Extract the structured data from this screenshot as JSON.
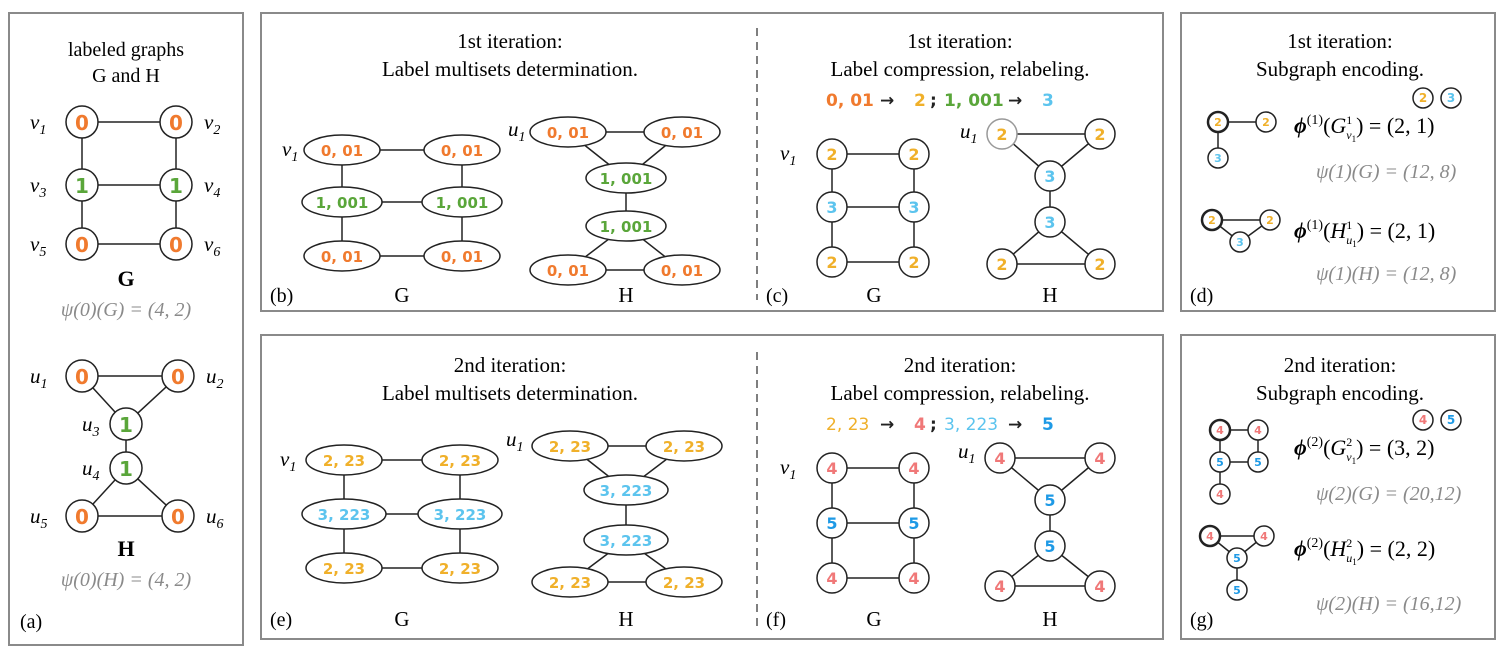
{
  "colors": {
    "orange": "#f07a2e",
    "green": "#5aa63a",
    "yellow": "#f0b02a",
    "cyan": "#5cc4ee",
    "pink": "#f07878",
    "blue": "#1e9ae6",
    "gray": "#8a8a8a",
    "frame": "#8a8a8a"
  },
  "panel_a": {
    "title_line1": "labeled graphs",
    "title_line2": "G and H",
    "G_label": "G",
    "H_label": "H",
    "psi_G": "ψ(0)(G) = (4, 2)",
    "psi_H": "ψ(0)(H) = (4, 2)",
    "tag": "(a)",
    "G_nodes": [
      {
        "name": "v1",
        "label": "0"
      },
      {
        "name": "v2",
        "label": "0"
      },
      {
        "name": "v3",
        "label": "1"
      },
      {
        "name": "v4",
        "label": "1"
      },
      {
        "name": "v5",
        "label": "0"
      },
      {
        "name": "v6",
        "label": "0"
      }
    ],
    "H_nodes": [
      {
        "name": "u1",
        "label": "0"
      },
      {
        "name": "u2",
        "label": "0"
      },
      {
        "name": "u3",
        "label": "1"
      },
      {
        "name": "u4",
        "label": "1"
      },
      {
        "name": "u5",
        "label": "0"
      },
      {
        "name": "u6",
        "label": "0"
      }
    ]
  },
  "panel_b": {
    "title_line1": "1st iteration:",
    "title_line2": "Label multisets determination.",
    "G_nodes": [
      "0, 01",
      "0, 01",
      "1, 001",
      "1, 001",
      "0, 01",
      "0, 01"
    ],
    "H_nodes": [
      "0, 01",
      "0, 01",
      "1, 001",
      "1, 001",
      "0, 01",
      "0, 01"
    ],
    "G_caption": "G",
    "H_caption": "H",
    "tag": "(b)",
    "G_anchor": "v1",
    "H_anchor": "u1"
  },
  "panel_c": {
    "title_line1": "1st iteration:",
    "title_line2": "Label compression, relabeling.",
    "rule1_from": "0, 01",
    "rule1_to": "2",
    "rule2_from": "1, 001",
    "rule2_to": "3",
    "arrow": "→",
    "separator": ";",
    "G_nodes": [
      "2",
      "2",
      "3",
      "3",
      "2",
      "2"
    ],
    "H_nodes": [
      "2",
      "2",
      "3",
      "3",
      "2",
      "2"
    ],
    "G_caption": "G",
    "H_caption": "H",
    "tag": "(c)",
    "G_anchor": "v1",
    "H_anchor": "u1"
  },
  "panel_d": {
    "title_line1": "1st iteration:",
    "title_line2": "Subgraph encoding.",
    "legend": [
      "2",
      "3"
    ],
    "phi_G": "ϕ(1)(G1v1) = (2,  1)",
    "psi_G": "ψ(1)(G) = (12, 8)",
    "phi_H": "ϕ(1)(H1u1) = (2,  1)",
    "psi_H": "ψ(1)(H) = (12, 8)",
    "tag": "(d)"
  },
  "panel_e": {
    "title_line1": "2nd iteration:",
    "title_line2": "Label multisets determination.",
    "G_nodes": [
      "2, 23",
      "2, 23",
      "3, 223",
      "3, 223",
      "2, 23",
      "2, 23"
    ],
    "H_nodes": [
      "2, 23",
      "2, 23",
      "3, 223",
      "3, 223",
      "2, 23",
      "2, 23"
    ],
    "G_caption": "G",
    "H_caption": "H",
    "tag": "(e)",
    "G_anchor": "v1",
    "H_anchor": "u1"
  },
  "panel_f": {
    "title_line1": "2nd iteration:",
    "title_line2": "Label compression, relabeling.",
    "rule1_from": "2, 23",
    "rule1_to": "4",
    "rule2_from": "3, 223",
    "rule2_to": "5",
    "arrow": "→",
    "separator": ";",
    "G_nodes": [
      "4",
      "4",
      "5",
      "5",
      "4",
      "4"
    ],
    "H_nodes": [
      "4",
      "4",
      "5",
      "5",
      "4",
      "4"
    ],
    "G_caption": "G",
    "H_caption": "H",
    "tag": "(f)",
    "G_anchor": "v1",
    "H_anchor": "u1"
  },
  "panel_g": {
    "title_line1": "2nd iteration:",
    "title_line2": "Subgraph encoding.",
    "legend": [
      "4",
      "5"
    ],
    "phi_G": "ϕ(2)(G2v1) = (3,  2)",
    "psi_G": "ψ(2)(G) = (20,12)",
    "phi_H": "ϕ(2)(H2u1) = (2,  2)",
    "psi_H": "ψ(2)(H) = (16,12)",
    "tag": "(g)"
  }
}
